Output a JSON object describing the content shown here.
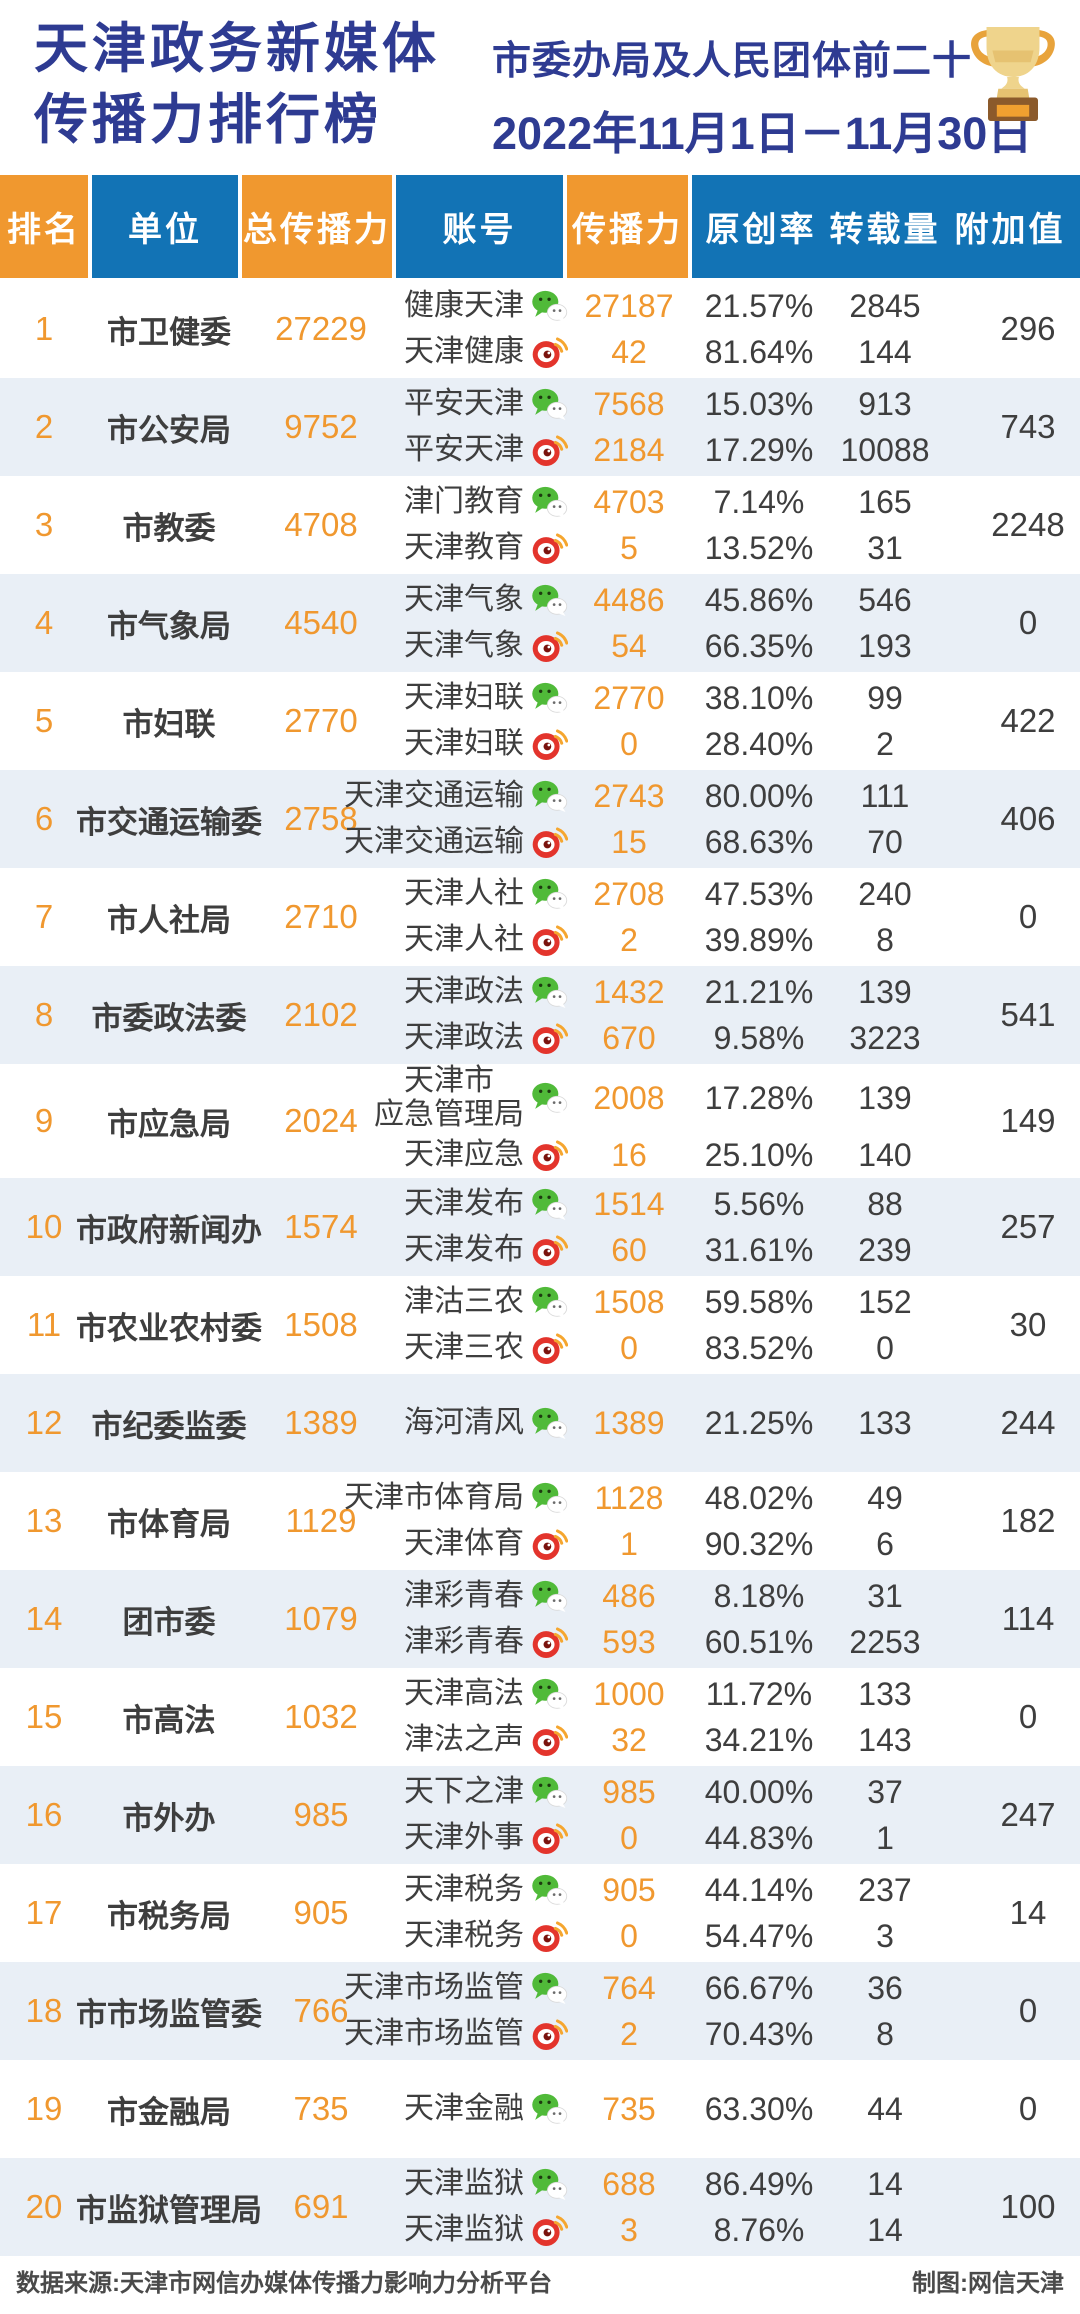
{
  "header": {
    "title_line1": "天津政务新媒体",
    "title_line2": "传播力排行榜",
    "subtitle": "市委办局及人民团体前二十",
    "date_range": "2022年11月1日－11月30日",
    "trophy_icon": "trophy-icon"
  },
  "chart_data": {
    "type": "table",
    "title": "天津政务新媒体传播力排行榜",
    "subtitle": "市委办局及人民团体前二十",
    "period": "2022年11月1日－11月30日",
    "columns": [
      "排名",
      "单位",
      "总传播力",
      "账号",
      "传播力",
      "原创率",
      "转载量",
      "附加值"
    ],
    "platform_icons": {
      "wechat": "wechat-icon",
      "weibo": "weibo-icon"
    },
    "rows": [
      {
        "rank": "1",
        "unit": "市卫健委",
        "total": "27229",
        "extra": "296",
        "accounts": [
          {
            "name": "健康天津",
            "platform": "wechat",
            "power": "27187",
            "original": "21.57%",
            "repost": "2845"
          },
          {
            "name": "天津健康",
            "platform": "weibo",
            "power": "42",
            "original": "81.64%",
            "repost": "144"
          }
        ]
      },
      {
        "rank": "2",
        "unit": "市公安局",
        "total": "9752",
        "extra": "743",
        "accounts": [
          {
            "name": "平安天津",
            "platform": "wechat",
            "power": "7568",
            "original": "15.03%",
            "repost": "913"
          },
          {
            "name": "平安天津",
            "platform": "weibo",
            "power": "2184",
            "original": "17.29%",
            "repost": "10088"
          }
        ]
      },
      {
        "rank": "3",
        "unit": "市教委",
        "total": "4708",
        "extra": "2248",
        "accounts": [
          {
            "name": "津门教育",
            "platform": "wechat",
            "power": "4703",
            "original": "7.14%",
            "repost": "165"
          },
          {
            "name": "天津教育",
            "platform": "weibo",
            "power": "5",
            "original": "13.52%",
            "repost": "31"
          }
        ]
      },
      {
        "rank": "4",
        "unit": "市气象局",
        "total": "4540",
        "extra": "0",
        "accounts": [
          {
            "name": "天津气象",
            "platform": "wechat",
            "power": "4486",
            "original": "45.86%",
            "repost": "546"
          },
          {
            "name": "天津气象",
            "platform": "weibo",
            "power": "54",
            "original": "66.35%",
            "repost": "193"
          }
        ]
      },
      {
        "rank": "5",
        "unit": "市妇联",
        "total": "2770",
        "extra": "422",
        "accounts": [
          {
            "name": "天津妇联",
            "platform": "wechat",
            "power": "2770",
            "original": "38.10%",
            "repost": "99"
          },
          {
            "name": "天津妇联",
            "platform": "weibo",
            "power": "0",
            "original": "28.40%",
            "repost": "2"
          }
        ]
      },
      {
        "rank": "6",
        "unit": "市交通运输委",
        "total": "2758",
        "extra": "406",
        "accounts": [
          {
            "name": "天津交通运输",
            "platform": "wechat",
            "power": "2743",
            "original": "80.00%",
            "repost": "111"
          },
          {
            "name": "天津交通运输",
            "platform": "weibo",
            "power": "15",
            "original": "68.63%",
            "repost": "70"
          }
        ]
      },
      {
        "rank": "7",
        "unit": "市人社局",
        "total": "2710",
        "extra": "0",
        "accounts": [
          {
            "name": "天津人社",
            "platform": "wechat",
            "power": "2708",
            "original": "47.53%",
            "repost": "240"
          },
          {
            "name": "天津人社",
            "platform": "weibo",
            "power": "2",
            "original": "39.89%",
            "repost": "8"
          }
        ]
      },
      {
        "rank": "8",
        "unit": "市委政法委",
        "total": "2102",
        "extra": "541",
        "accounts": [
          {
            "name": "天津政法",
            "platform": "wechat",
            "power": "1432",
            "original": "21.21%",
            "repost": "139"
          },
          {
            "name": "天津政法",
            "platform": "weibo",
            "power": "670",
            "original": "9.58%",
            "repost": "3223"
          }
        ]
      },
      {
        "rank": "9",
        "unit": "市应急局",
        "total": "2024",
        "extra": "149",
        "accounts": [
          {
            "name": "天津市\n应急管理局",
            "platform": "wechat",
            "power": "2008",
            "original": "17.28%",
            "repost": "139"
          },
          {
            "name": "天津应急",
            "platform": "weibo",
            "power": "16",
            "original": "25.10%",
            "repost": "140"
          }
        ]
      },
      {
        "rank": "10",
        "unit": "市政府新闻办",
        "total": "1574",
        "extra": "257",
        "accounts": [
          {
            "name": "天津发布",
            "platform": "wechat",
            "power": "1514",
            "original": "5.56%",
            "repost": "88"
          },
          {
            "name": "天津发布",
            "platform": "weibo",
            "power": "60",
            "original": "31.61%",
            "repost": "239"
          }
        ]
      },
      {
        "rank": "11",
        "unit": "市农业农村委",
        "total": "1508",
        "extra": "30",
        "accounts": [
          {
            "name": "津沽三农",
            "platform": "wechat",
            "power": "1508",
            "original": "59.58%",
            "repost": "152"
          },
          {
            "name": "天津三农",
            "platform": "weibo",
            "power": "0",
            "original": "83.52%",
            "repost": "0"
          }
        ]
      },
      {
        "rank": "12",
        "unit": "市纪委监委",
        "total": "1389",
        "extra": "244",
        "accounts": [
          {
            "name": "海河清风",
            "platform": "wechat",
            "power": "1389",
            "original": "21.25%",
            "repost": "133"
          }
        ]
      },
      {
        "rank": "13",
        "unit": "市体育局",
        "total": "1129",
        "extra": "182",
        "accounts": [
          {
            "name": "天津市体育局",
            "platform": "wechat",
            "power": "1128",
            "original": "48.02%",
            "repost": "49"
          },
          {
            "name": "天津体育",
            "platform": "weibo",
            "power": "1",
            "original": "90.32%",
            "repost": "6"
          }
        ]
      },
      {
        "rank": "14",
        "unit": "团市委",
        "total": "1079",
        "extra": "114",
        "accounts": [
          {
            "name": "津彩青春",
            "platform": "wechat",
            "power": "486",
            "original": "8.18%",
            "repost": "31"
          },
          {
            "name": "津彩青春",
            "platform": "weibo",
            "power": "593",
            "original": "60.51%",
            "repost": "2253"
          }
        ]
      },
      {
        "rank": "15",
        "unit": "市高法",
        "total": "1032",
        "extra": "0",
        "accounts": [
          {
            "name": "天津高法",
            "platform": "wechat",
            "power": "1000",
            "original": "11.72%",
            "repost": "133"
          },
          {
            "name": "津法之声",
            "platform": "weibo",
            "power": "32",
            "original": "34.21%",
            "repost": "143"
          }
        ]
      },
      {
        "rank": "16",
        "unit": "市外办",
        "total": "985",
        "extra": "247",
        "accounts": [
          {
            "name": "天下之津",
            "platform": "wechat",
            "power": "985",
            "original": "40.00%",
            "repost": "37"
          },
          {
            "name": "天津外事",
            "platform": "weibo",
            "power": "0",
            "original": "44.83%",
            "repost": "1"
          }
        ]
      },
      {
        "rank": "17",
        "unit": "市税务局",
        "total": "905",
        "extra": "14",
        "accounts": [
          {
            "name": "天津税务",
            "platform": "wechat",
            "power": "905",
            "original": "44.14%",
            "repost": "237"
          },
          {
            "name": "天津税务",
            "platform": "weibo",
            "power": "0",
            "original": "54.47%",
            "repost": "3"
          }
        ]
      },
      {
        "rank": "18",
        "unit": "市市场监管委",
        "total": "766",
        "extra": "0",
        "accounts": [
          {
            "name": "天津市场监管",
            "platform": "wechat",
            "power": "764",
            "original": "66.67%",
            "repost": "36"
          },
          {
            "name": "天津市场监管",
            "platform": "weibo",
            "power": "2",
            "original": "70.43%",
            "repost": "8"
          }
        ]
      },
      {
        "rank": "19",
        "unit": "市金融局",
        "total": "735",
        "extra": "0",
        "accounts": [
          {
            "name": "天津金融",
            "platform": "wechat",
            "power": "735",
            "original": "63.30%",
            "repost": "44"
          }
        ]
      },
      {
        "rank": "20",
        "unit": "市监狱管理局",
        "total": "691",
        "extra": "100",
        "accounts": [
          {
            "name": "天津监狱",
            "platform": "wechat",
            "power": "688",
            "original": "86.49%",
            "repost": "14"
          },
          {
            "name": "天津监狱",
            "platform": "weibo",
            "power": "3",
            "original": "8.76%",
            "repost": "14"
          }
        ]
      }
    ]
  },
  "footer": {
    "source": "数据来源:天津市网信办媒体传播力影响力分析平台",
    "credit": "制图:网信天津"
  },
  "colors": {
    "orange": "#F0982F",
    "blue": "#1273B5",
    "navy_title": "#2E3B92",
    "alt_row": "#E9EFF6",
    "dark_text": "#3E3E3E",
    "wechat_green": "#50BA39",
    "weibo_red": "#E3342C",
    "weibo_swoosh": "#F5A62F",
    "trophy_gold": "#EFD48C",
    "trophy_base": "#8B5A2B"
  }
}
